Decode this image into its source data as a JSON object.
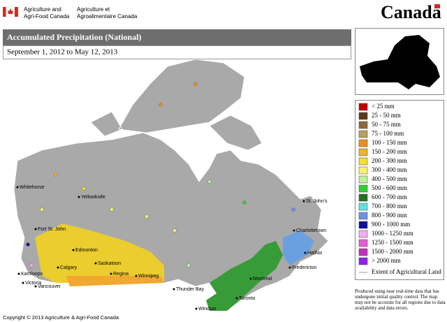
{
  "header": {
    "agency_en": [
      "Agriculture and",
      "Agri-Food Canada"
    ],
    "agency_fr": [
      "Agriculture et",
      "Agroalimentaire Canada"
    ],
    "wordmark": "Canada"
  },
  "title": "Accumulated Precipitation (National)",
  "subtitle": "September 1, 2012 to May 12, 2013",
  "legend": {
    "items": [
      {
        "label": "< 25 mm",
        "color": "#c00000"
      },
      {
        "label": "25 - 50 mm",
        "color": "#5a3a1a"
      },
      {
        "label": "50 - 75 mm",
        "color": "#8b6a3a"
      },
      {
        "label": "75 - 100 mm",
        "color": "#b8a060"
      },
      {
        "label": "100 - 150 mm",
        "color": "#e89020"
      },
      {
        "label": "150 - 200 mm",
        "color": "#f0b030"
      },
      {
        "label": "200 - 300 mm",
        "color": "#f0e030"
      },
      {
        "label": "300 - 400 mm",
        "color": "#f8f070"
      },
      {
        "label": "400 - 500 mm",
        "color": "#c0f0a0"
      },
      {
        "label": "500 - 600 mm",
        "color": "#30d030"
      },
      {
        "label": "600 - 700 mm",
        "color": "#207020"
      },
      {
        "label": "700 - 800 mm",
        "color": "#60e0e0"
      },
      {
        "label": "800 - 900 mm",
        "color": "#7090e0"
      },
      {
        "label": "900 - 1000 mm",
        "color": "#1010a0"
      },
      {
        "label": "1000 - 1250 mm",
        "color": "#f0b0f0"
      },
      {
        "label": "1250 - 1500 mm",
        "color": "#e060d0"
      },
      {
        "label": "1500 - 2000 mm",
        "color": "#c030c0"
      },
      {
        "label": "> 2000 mm",
        "color": "#9020f0"
      }
    ],
    "extent": "Extent of Agricultural Land"
  },
  "cities": [
    "Whitehorse",
    "Yellowknife",
    "Fort St. John",
    "Edmonton",
    "Kamloops",
    "Calgary",
    "Saskatoon",
    "Regina",
    "Winnipeg",
    "Victoria",
    "Vancouver",
    "Thunder Bay",
    "Windsor",
    "Toronto",
    "Montréal",
    "Fredericton",
    "Charlottetown",
    "Halifax",
    "St. John's"
  ],
  "disclaimer": "Produced using near real-time data that has undergone initial quality control.  The map may not be accurate for all regions due to data availability and data errors.",
  "copyright": "Copyright © 2013 Agriculture & Agri-Food Canada"
}
